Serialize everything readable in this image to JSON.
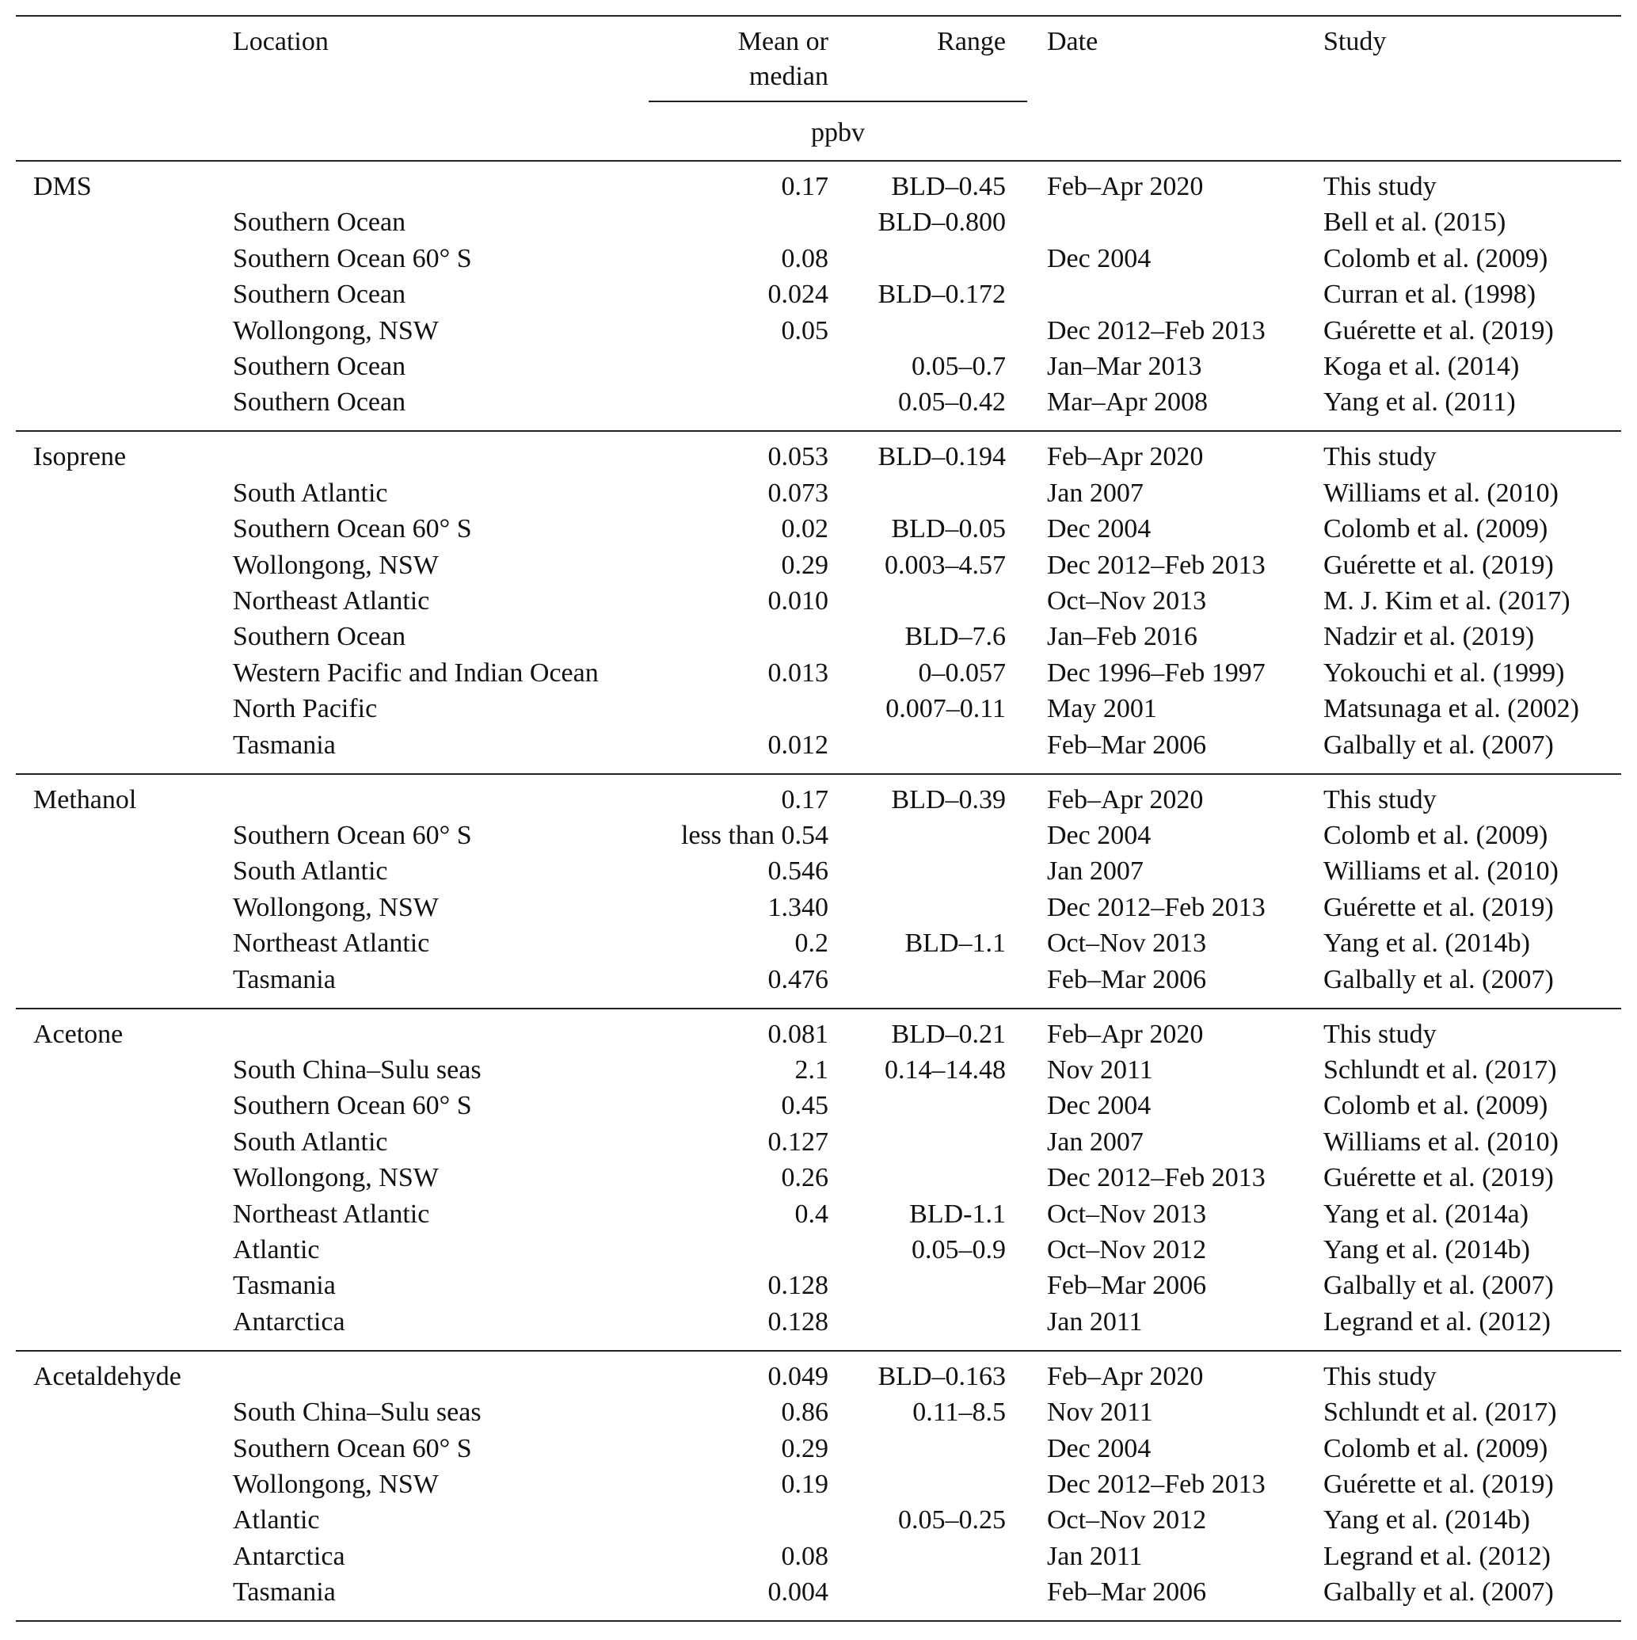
{
  "table": {
    "columns": [
      "Location",
      "Mean or median",
      "Range",
      "Date",
      "Study"
    ],
    "unit": "ppbv",
    "groups": [
      {
        "name": "DMS",
        "rows": [
          [
            null,
            "0.17",
            "BLD–0.45",
            "Feb–Apr 2020",
            "This study"
          ],
          [
            "Southern Ocean",
            null,
            "BLD–0.800",
            null,
            "Bell et al. (2015)"
          ],
          [
            "Southern Ocean 60° S",
            "0.08",
            null,
            "Dec 2004",
            "Colomb et al. (2009)"
          ],
          [
            "Southern Ocean",
            "0.024",
            "BLD–0.172",
            null,
            "Curran et al. (1998)"
          ],
          [
            "Wollongong, NSW",
            "0.05",
            null,
            "Dec 2012–Feb 2013",
            "Guérette et al. (2019)"
          ],
          [
            "Southern Ocean",
            null,
            "0.05–0.7",
            "Jan–Mar 2013",
            "Koga et al. (2014)"
          ],
          [
            "Southern Ocean",
            null,
            "0.05–0.42",
            "Mar–Apr 2008",
            "Yang et al. (2011)"
          ]
        ]
      },
      {
        "name": "Isoprene",
        "rows": [
          [
            null,
            "0.053",
            "BLD–0.194",
            "Feb–Apr 2020",
            "This study"
          ],
          [
            "South Atlantic",
            "0.073",
            null,
            "Jan 2007",
            "Williams et al. (2010)"
          ],
          [
            "Southern Ocean 60° S",
            "0.02",
            "BLD–0.05",
            "Dec 2004",
            "Colomb et al. (2009)"
          ],
          [
            "Wollongong, NSW",
            "0.29",
            "0.003–4.57",
            "Dec 2012–Feb 2013",
            "Guérette et al. (2019)"
          ],
          [
            "Northeast Atlantic",
            "0.010",
            null,
            "Oct–Nov 2013",
            "M. J. Kim et al. (2017)"
          ],
          [
            "Southern Ocean",
            null,
            "BLD–7.6",
            "Jan–Feb 2016",
            "Nadzir et al. (2019)"
          ],
          [
            "Western Pacific and Indian Ocean",
            "0.013",
            "0–0.057",
            "Dec 1996–Feb 1997",
            "Yokouchi et al. (1999)"
          ],
          [
            "North Pacific",
            null,
            "0.007–0.11",
            "May 2001",
            "Matsunaga et al. (2002)"
          ],
          [
            "Tasmania",
            "0.012",
            null,
            "Feb–Mar 2006",
            "Galbally et al. (2007)"
          ]
        ]
      },
      {
        "name": "Methanol",
        "rows": [
          [
            null,
            "0.17",
            "BLD–0.39",
            "Feb–Apr 2020",
            "This study"
          ],
          [
            "Southern Ocean 60° S",
            "less than 0.54",
            null,
            "Dec 2004",
            "Colomb et al. (2009)"
          ],
          [
            "South Atlantic",
            "0.546",
            null,
            "Jan 2007",
            "Williams et al. (2010)"
          ],
          [
            "Wollongong, NSW",
            "1.340",
            null,
            "Dec 2012–Feb 2013",
            "Guérette et al. (2019)"
          ],
          [
            "Northeast Atlantic",
            "0.2",
            "BLD–1.1",
            "Oct–Nov 2013",
            "Yang et al. (2014b)"
          ],
          [
            "Tasmania",
            "0.476",
            null,
            "Feb–Mar 2006",
            "Galbally et al. (2007)"
          ]
        ]
      },
      {
        "name": "Acetone",
        "rows": [
          [
            null,
            "0.081",
            "BLD–0.21",
            "Feb–Apr 2020",
            "This study"
          ],
          [
            "South China–Sulu seas",
            "2.1",
            "0.14–14.48",
            "Nov 2011",
            "Schlundt et al. (2017)"
          ],
          [
            "Southern Ocean 60° S",
            "0.45",
            null,
            "Dec 2004",
            "Colomb et al. (2009)"
          ],
          [
            "South Atlantic",
            "0.127",
            null,
            "Jan 2007",
            "Williams et al. (2010)"
          ],
          [
            "Wollongong, NSW",
            "0.26",
            null,
            "Dec 2012–Feb 2013",
            "Guérette et al. (2019)"
          ],
          [
            "Northeast Atlantic",
            "0.4",
            "BLD-1.1",
            "Oct–Nov 2013",
            "Yang et al. (2014a)"
          ],
          [
            "Atlantic",
            null,
            "0.05–0.9",
            "Oct–Nov 2012",
            "Yang et al. (2014b)"
          ],
          [
            "Tasmania",
            "0.128",
            null,
            "Feb–Mar 2006",
            "Galbally et al. (2007)"
          ],
          [
            "Antarctica",
            "0.128",
            null,
            "Jan 2011",
            "Legrand et al. (2012)"
          ]
        ]
      },
      {
        "name": "Acetaldehyde",
        "rows": [
          [
            null,
            "0.049",
            "BLD–0.163",
            "Feb–Apr 2020",
            "This study"
          ],
          [
            "South China–Sulu seas",
            "0.86",
            "0.11–8.5",
            "Nov 2011",
            "Schlundt et al. (2017)"
          ],
          [
            "Southern Ocean 60° S",
            "0.29",
            null,
            "Dec 2004",
            "Colomb et al. (2009)"
          ],
          [
            "Wollongong, NSW",
            "0.19",
            null,
            "Dec 2012–Feb 2013",
            "Guérette et al. (2019)"
          ],
          [
            "Atlantic",
            null,
            "0.05–0.25",
            "Oct–Nov 2012",
            "Yang et al. (2014b)"
          ],
          [
            "Antarctica",
            "0.08",
            null,
            "Jan 2011",
            "Legrand et al. (2012)"
          ],
          [
            "Tasmania",
            "0.004",
            null,
            "Feb–Mar 2006",
            "Galbally et al. (2007)"
          ]
        ]
      }
    ]
  }
}
